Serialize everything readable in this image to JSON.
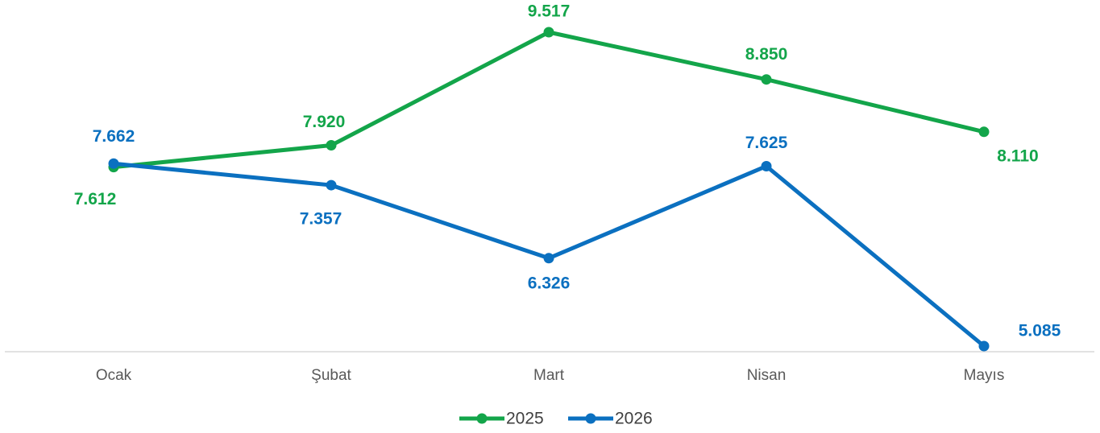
{
  "chart_data": {
    "type": "line",
    "categories": [
      "Ocak",
      "Şubat",
      "Mart",
      "Nisan",
      "Mayıs"
    ],
    "series": [
      {
        "name": "2025",
        "color": "#13a54a",
        "values": [
          7612,
          7920,
          9517,
          8850,
          8110
        ],
        "value_labels": [
          "7.612",
          "7.920",
          "9.517",
          "8.850",
          "8.110"
        ]
      },
      {
        "name": "2026",
        "color": "#0b70c0",
        "values": [
          7662,
          7357,
          6326,
          7625,
          5085
        ],
        "value_labels": [
          "7.662",
          "7.357",
          "6.326",
          "7.625",
          "5.085"
        ]
      }
    ],
    "legend": "bottom"
  }
}
